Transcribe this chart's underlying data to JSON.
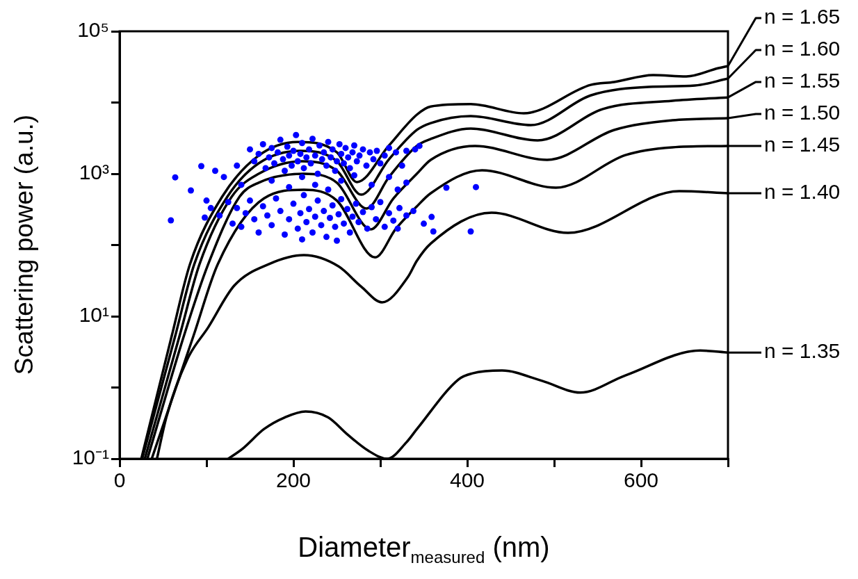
{
  "chart_data": {
    "type": "line",
    "xlabel": "Diameter$_{measured}$ (nm)",
    "ylabel": "Scattering power (a.u.)",
    "log": "y",
    "legend": "right",
    "line_style": "solid",
    "marker": "none",
    "xlim": [
      0,
      700
    ],
    "xticks": [
      0,
      {
        "value": 100,
        "label": null
      },
      200,
      {
        "value": 300,
        "label": null
      },
      400,
      {
        "value": 500,
        "label": null
      },
      600,
      {
        "value": 700,
        "label": null
      }
    ],
    "ylim": [
      0.1,
      100000
    ],
    "yticks": [
      {
        "value": 0.1,
        "label": "10⁻¹"
      },
      {
        "value": 1,
        "label": null
      },
      {
        "value": 10,
        "label": "10¹"
      },
      {
        "value": 100,
        "label": null
      },
      {
        "value": 1000,
        "label": "10³"
      },
      {
        "value": 10000,
        "label": null
      },
      {
        "value": 100000,
        "label": "10⁵"
      }
    ],
    "series": [
      {
        "name": "n = 1.65",
        "color": "#000000",
        "x": [
          25,
          60,
          81,
          118,
          160,
          205,
          250,
          273,
          310,
          342,
          358,
          404,
          465,
          542,
          569,
          614,
          652,
          689,
          700
        ],
        "values": [
          0.1,
          5.3,
          54,
          476,
          1800,
          2800,
          2000,
          764,
          2500,
          6750,
          8800,
          9500,
          7060,
          17700,
          19400,
          24300,
          23200,
          30400,
          32500
        ]
      },
      {
        "name": "n = 1.60",
        "color": "#000000",
        "x": [
          26,
          64,
          86,
          124,
          160,
          208,
          250,
          278,
          310,
          342,
          358,
          404,
          473,
          542,
          609,
          662,
          700
        ],
        "values": [
          0.1,
          5.3,
          54,
          476,
          1400,
          2100,
          1500,
          509,
          1600,
          4120,
          5150,
          6450,
          4820,
          12600,
          16600,
          17300,
          21700
        ]
      },
      {
        "name": "n = 1.55",
        "color": "#000000",
        "x": [
          29,
          69,
          92,
          129,
          160,
          210,
          250,
          284,
          310,
          342,
          358,
          404,
          481,
          556,
          636,
          700
        ],
        "values": [
          0.1,
          5.3,
          54,
          476,
          1000,
          1500,
          1100,
          325,
          900,
          2460,
          3080,
          4310,
          2940,
          8100,
          10600,
          11800
        ]
      },
      {
        "name": "n = 1.50",
        "color": "#000000",
        "x": [
          32,
          74,
          102,
          138,
          160,
          212,
          250,
          289,
          315,
          342,
          358,
          409,
          492,
          569,
          636,
          700
        ],
        "values": [
          0.1,
          5.3,
          54,
          476,
          750,
          1000,
          750,
          166,
          450,
          1000,
          1570,
          2460,
          1570,
          4120,
          5630,
          6030
        ]
      },
      {
        "name": "n = 1.45",
        "color": "#000000",
        "x": [
          37,
          85,
          113,
          166,
          212,
          250,
          294,
          318,
          342,
          358,
          417,
          502,
          582,
          636,
          700
        ],
        "values": [
          0.1,
          5.3,
          54,
          450,
          597,
          420,
          67,
          170,
          348,
          533,
          1120,
          638,
          1830,
          2350,
          2460
        ]
      },
      {
        "name": "n = 1.40",
        "color": "#000000",
        "x": [
          43,
          54,
          78,
          102,
          132,
          172,
          212,
          252,
          278,
          302,
          332,
          342,
          358,
          428,
          516,
          644,
          700
        ],
        "values": [
          0.1,
          0.39,
          2.5,
          7,
          27,
          54,
          72,
          50,
          26,
          15.7,
          36,
          60,
          105,
          284,
          148,
          570,
          533
        ]
      },
      {
        "name": "n = 1.35",
        "color": "#000000",
        "x": [
          125,
          142,
          166,
          190,
          214,
          240,
          262,
          286,
          308,
          330,
          342,
          390,
          406,
          440,
          486,
          530,
          582,
          668,
          700
        ],
        "values": [
          0.1,
          0.14,
          0.26,
          0.38,
          0.46,
          0.38,
          0.22,
          0.13,
          0.1,
          0.17,
          0.26,
          1.3,
          1.58,
          1.73,
          1.24,
          0.85,
          1.48,
          3.3,
          3.1
        ]
      },
      {
        "type": "scatter",
        "marker": "circle",
        "color": "#0000ff",
        "x": [
          150,
          155,
          160,
          165,
          168,
          172,
          175,
          178,
          182,
          185,
          188,
          190,
          193,
          195,
          198,
          200,
          203,
          205,
          208,
          210,
          212,
          215,
          218,
          220,
          222,
          225,
          228,
          230,
          233,
          235,
          238,
          240,
          243,
          245,
          248,
          250,
          253,
          255,
          258,
          260,
          263,
          265,
          268,
          270,
          273,
          276,
          280,
          284,
          288,
          292,
          296,
          300,
          305,
          310,
          318,
          325,
          330,
          340,
          175,
          195,
          210,
          225,
          240,
          255,
          270,
          290,
          310,
          320,
          330,
          140,
          120,
          135,
          110,
          105,
          115,
          125,
          130,
          135,
          140,
          145,
          150,
          155,
          160,
          165,
          170,
          175,
          180,
          185,
          190,
          195,
          200,
          205,
          208,
          212,
          215,
          218,
          222,
          225,
          228,
          232,
          235,
          238,
          242,
          245,
          248,
          252,
          255,
          258,
          262,
          265,
          268,
          272,
          275,
          280,
          285,
          290,
          295,
          300,
          305,
          310,
          315,
          322,
          330,
          338,
          100,
          210,
          250,
          320,
          59,
          64,
          94,
          82,
          98,
          345,
          350,
          359,
          361,
          376,
          404,
          410
        ],
        "values": [
          2200,
          1500,
          1900,
          2600,
          1200,
          1700,
          2300,
          1400,
          2000,
          3000,
          1600,
          1100,
          2400,
          1800,
          1300,
          2100,
          3500,
          1500,
          1900,
          2700,
          1200,
          1700,
          2200,
          1400,
          3100,
          1800,
          1000,
          2500,
          1600,
          2000,
          1300,
          2800,
          1700,
          2200,
          1100,
          1500,
          2600,
          1900,
          1400,
          2300,
          1700,
          1200,
          2000,
          2500,
          1500,
          1800,
          2200,
          1300,
          2000,
          1600,
          2100,
          1400,
          1800,
          2300,
          2000,
          1300,
          2100,
          2200,
          800,
          650,
          900,
          700,
          600,
          800,
          950,
          700,
          900,
          600,
          750,
          700,
          900,
          1300,
          1100,
          330,
          260,
          400,
          200,
          330,
          180,
          280,
          420,
          230,
          150,
          350,
          260,
          190,
          450,
          300,
          140,
          230,
          380,
          170,
          280,
          500,
          210,
          320,
          150,
          250,
          420,
          190,
          300,
          130,
          240,
          360,
          180,
          270,
          440,
          200,
          320,
          150,
          250,
          380,
          210,
          290,
          170,
          340,
          230,
          400,
          180,
          280,
          220,
          330,
          260,
          300,
          420,
          120,
          115,
          170,
          222,
          890,
          1280,
          583,
          243,
          2460,
          199,
          248,
          155,
          638,
          155,
          650
        ]
      }
    ]
  }
}
